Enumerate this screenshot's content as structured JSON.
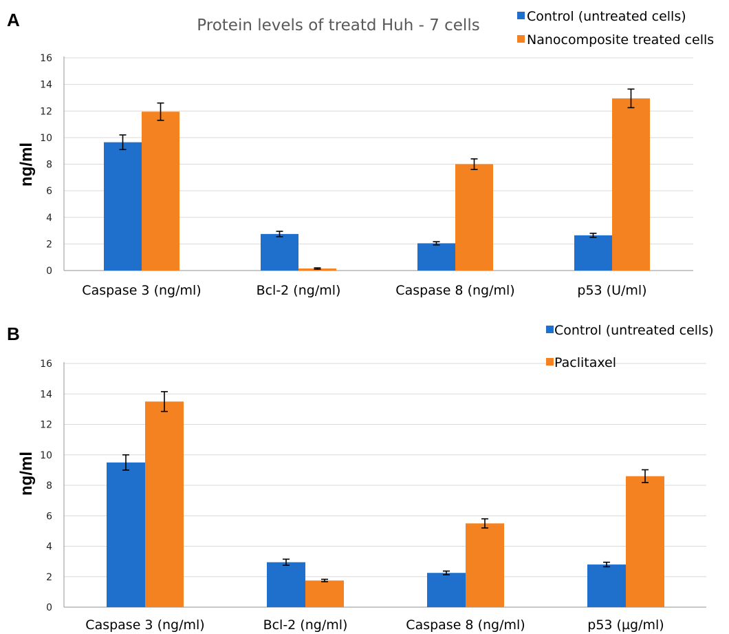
{
  "colors": {
    "control": "#1f6fcc",
    "treated": "#f58220"
  },
  "chart_data": [
    {
      "panel": "A",
      "type": "bar",
      "title": "Protein levels of treatd Huh - 7 cells",
      "ylabel": "ng/ml",
      "ylim": [
        0,
        16
      ],
      "yticks": [
        0,
        2,
        4,
        6,
        8,
        10,
        12,
        14,
        16
      ],
      "grid": true,
      "legend_position": "top-right",
      "categories": [
        "Caspase 3 (ng/ml)",
        "Bcl-2 (ng/ml)",
        "Caspase 8 (ng/ml)",
        "p53 (U/ml)"
      ],
      "series": [
        {
          "name": "Control (untreated cells)",
          "color": "#1f6fcc",
          "values": [
            9.65,
            2.75,
            2.05,
            2.65
          ],
          "errors": [
            0.55,
            0.2,
            0.12,
            0.15
          ]
        },
        {
          "name": "Nanocomposite treated cells",
          "color": "#f58220",
          "values": [
            11.95,
            0.15,
            8.0,
            12.95
          ],
          "errors": [
            0.65,
            0.05,
            0.4,
            0.7
          ]
        }
      ]
    },
    {
      "panel": "B",
      "type": "bar",
      "title": "",
      "ylabel": "ng/ml",
      "ylim": [
        0,
        16
      ],
      "yticks": [
        0,
        2,
        4,
        6,
        8,
        10,
        12,
        14,
        16
      ],
      "grid": true,
      "legend_position": "top-right",
      "categories": [
        "Caspase 3 (ng/ml)",
        "Bcl-2 (ng/ml)",
        "Caspase 8 (ng/ml)",
        "p53 (µg/ml)"
      ],
      "series": [
        {
          "name": "Control (untreated cells)",
          "color": "#1f6fcc",
          "values": [
            9.5,
            2.95,
            2.25,
            2.8
          ],
          "errors": [
            0.5,
            0.2,
            0.12,
            0.15
          ]
        },
        {
          "name": "Paclitaxel",
          "color": "#f58220",
          "values": [
            13.5,
            1.75,
            5.5,
            8.6
          ],
          "errors": [
            0.65,
            0.08,
            0.3,
            0.42
          ]
        }
      ]
    }
  ]
}
